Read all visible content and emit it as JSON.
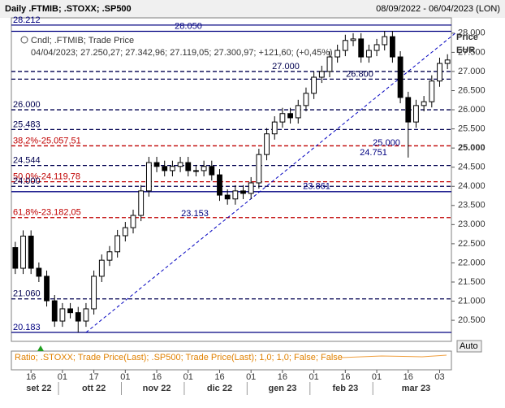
{
  "chart_data": {
    "type": "candlestick",
    "title": "Daily .FTMIB; .STOXX; .SP500",
    "date_range": "08/09/2022 - 06/04/2023 (LON)",
    "legend_title": "Cndl; .FTMIB; Trade Price",
    "info_line": "04/04/2023; 27.250,27; 27.342,96; 27.119,05; 27.300,97; +121,60; (+0,45%)",
    "y_axis_title": "Price",
    "y_axis_unit": "EUR",
    "scale_button": "Auto",
    "lower_panel_label": "Ratio; .STOXX; Trade Price(Last); .SP500; Trade Price(Last);  1,0; 1,0; False; False",
    "categories": [
      null,
      null,
      "16",
      null,
      null,
      null,
      "01",
      null,
      null,
      null,
      "17",
      null,
      null,
      null,
      "01",
      null,
      null,
      null,
      "16",
      null,
      null,
      null,
      "01",
      null,
      null,
      null,
      "16",
      null,
      null,
      null,
      "01",
      null,
      null,
      null,
      "16",
      null,
      null,
      null,
      "01",
      null,
      null,
      null,
      "16",
      null,
      null,
      null,
      "01",
      null,
      null,
      null,
      "16",
      null,
      null,
      null,
      "03",
      null
    ],
    "months": [
      "set 22",
      "ott 22",
      "nov 22",
      "dic 22",
      "gen 23",
      "feb 23",
      "mar 23"
    ],
    "open": [
      22400,
      21860,
      22700,
      21860,
      21650,
      21010,
      20480,
      20800,
      20700,
      20480,
      20800,
      21650,
      22070,
      22290,
      22710,
      22920,
      23240,
      23880,
      24620,
      24520,
      24410,
      24520,
      24620,
      24410,
      24410,
      24520,
      24300,
      23770,
      23670,
      23880,
      23815,
      24090,
      24830,
      25370,
      25680,
      25900,
      25790,
      26110,
      26430,
      26850,
      27000,
      27380,
      27550,
      27810,
      27850,
      27380,
      27550,
      27700,
      27910,
      27380,
      26320,
      25680,
      26110,
      26210,
      26750,
      27210
    ],
    "high": [
      22550,
      22850,
      22850,
      22010,
      21800,
      21160,
      20950,
      20950,
      20850,
      20950,
      21800,
      22220,
      22440,
      22860,
      23070,
      23390,
      24030,
      24770,
      24770,
      24670,
      24670,
      24770,
      24770,
      24560,
      24670,
      24670,
      24450,
      23920,
      24030,
      24030,
      24240,
      24980,
      25520,
      25830,
      26050,
      26050,
      26260,
      26580,
      27000,
      27150,
      27530,
      27700,
      27960,
      28000,
      28000,
      27700,
      27850,
      28060,
      28060,
      27530,
      26470,
      26260,
      26360,
      26900,
      27360,
      27450
    ],
    "low": [
      21710,
      21710,
      21710,
      21500,
      20860,
      20330,
      20330,
      20550,
      20183,
      20330,
      20650,
      21500,
      21920,
      22140,
      22560,
      22770,
      23090,
      23730,
      24370,
      24260,
      24260,
      24370,
      24260,
      24260,
      24260,
      24150,
      23620,
      23520,
      23520,
      23665,
      23665,
      23940,
      24680,
      25220,
      25530,
      25640,
      25640,
      25960,
      26280,
      26700,
      26850,
      27230,
      27400,
      27660,
      27230,
      27230,
      27400,
      27550,
      27230,
      26170,
      24751,
      25530,
      25960,
      26060,
      26600,
      27060
    ],
    "close": [
      21860,
      22700,
      21860,
      21650,
      21010,
      20480,
      20800,
      20700,
      20480,
      20800,
      21650,
      22070,
      22290,
      22710,
      22920,
      23240,
      23880,
      24620,
      24520,
      24410,
      24520,
      24620,
      24410,
      24410,
      24520,
      24300,
      23770,
      23670,
      23880,
      23815,
      24090,
      24830,
      25370,
      25680,
      25900,
      25790,
      26110,
      26430,
      26850,
      27000,
      27380,
      27550,
      27810,
      27850,
      27380,
      27550,
      27700,
      27910,
      27380,
      26320,
      25680,
      26110,
      26210,
      26750,
      27210,
      27300
    ],
    "up_color": "#ffffff",
    "down_color": "#000000",
    "ylim": [
      19950,
      28400
    ],
    "yticks": [
      {
        "value": 20500,
        "label": "20.500"
      },
      {
        "value": 21000,
        "label": "21.000"
      },
      {
        "value": 21500,
        "label": "21.500"
      },
      {
        "value": 22000,
        "label": "22.000"
      },
      {
        "value": 22500,
        "label": "22.500"
      },
      {
        "value": 23000,
        "label": "23.000"
      },
      {
        "value": 23500,
        "label": "23.500"
      },
      {
        "value": 24000,
        "label": "24.000"
      },
      {
        "value": 24500,
        "label": "24.500"
      },
      {
        "value": 25000,
        "label": "25.000"
      },
      {
        "value": 25500,
        "label": "25.500"
      },
      {
        "value": 26000,
        "label": "26.000"
      },
      {
        "value": 26500,
        "label": "26.500"
      },
      {
        "value": 27000,
        "label": "27.000"
      },
      {
        "value": 27500,
        "label": "27.500"
      },
      {
        "value": 28000,
        "label": "28.000"
      }
    ],
    "levels": [
      {
        "value": 28212,
        "label": "28.212",
        "style": "solid",
        "color": "#000080"
      },
      {
        "value": 28050,
        "label": "28.050",
        "style": "solid",
        "color": "#000080"
      },
      {
        "value": 27000,
        "label": "27.000",
        "style": "dashed",
        "color": "#000050"
      },
      {
        "value": 26800,
        "label": "26.800",
        "style": "dashed",
        "color": "#000050"
      },
      {
        "value": 26000,
        "label": "26.000",
        "style": "dashed",
        "color": "#000050"
      },
      {
        "value": 25483,
        "label": "25.483",
        "style": "dashed",
        "color": "#000050"
      },
      {
        "value": 25057.51,
        "label": "38,2%-25.057,51",
        "style": "dashed",
        "color": "#c00000"
      },
      {
        "value": 25000,
        "label": "25.000",
        "style": "none",
        "color": "#000080"
      },
      {
        "value": 24751,
        "label": "24.751",
        "style": "none",
        "color": "#000080"
      },
      {
        "value": 24544,
        "label": "24.544",
        "style": "dashed",
        "color": "#000050"
      },
      {
        "value": 24119.78,
        "label": "50,0%-24.119,78",
        "style": "dashed",
        "color": "#c00000"
      },
      {
        "value": 24000,
        "label": "24.000",
        "style": "dashed",
        "color": "#000050"
      },
      {
        "value": 23861,
        "label": "23.861",
        "style": "solid",
        "color": "#000080"
      },
      {
        "value": 23182.05,
        "label": "61,8%-23.182,05",
        "style": "dashed",
        "color": "#c00000"
      },
      {
        "value": 23153,
        "label": "23.153",
        "style": "none",
        "color": "#000080"
      },
      {
        "value": 21060,
        "label": "21.060",
        "style": "dashed",
        "color": "#000050"
      },
      {
        "value": 20183,
        "label": "20.183",
        "style": "solid",
        "color": "#000080"
      }
    ],
    "trend_line": {
      "x": [
        9,
        56
      ],
      "values": [
        20183,
        28000
      ],
      "color": "#0000c0"
    }
  }
}
